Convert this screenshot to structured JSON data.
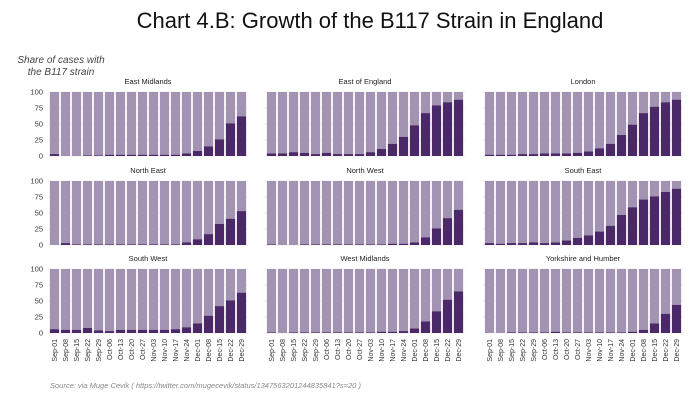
{
  "title": "Chart 4.B: Growth of the B117 Strain in England",
  "y_axis_label_line1": "Share of cases with",
  "y_axis_label_line2": "the B117 strain",
  "source": "Source: via Muge Cevik ( https://twitter.com/mugecevik/status/1347563201244835841?s=20 )",
  "colors": {
    "b117": "#4b2868",
    "other": "#a393b3",
    "grid": "#ececec"
  },
  "chart_data": {
    "type": "bar",
    "stacked": true,
    "title": "Chart 4.B: Growth of the B117 Strain in England",
    "ylabel": "Share of cases with the B117 strain",
    "xlabel": "",
    "ylim": [
      0,
      100
    ],
    "yticks": [
      0,
      25,
      50,
      75,
      100
    ],
    "grid": true,
    "categories": [
      "Sep-01",
      "Sep-08",
      "Sep-15",
      "Sep-22",
      "Sep-29",
      "Oct-06",
      "Oct-13",
      "Oct-20",
      "Oct-27",
      "Nov-03",
      "Nov-10",
      "Nov-17",
      "Nov-24",
      "Dec-01",
      "Dec-08",
      "Dec-15",
      "Dec-22",
      "Dec-29"
    ],
    "panels": [
      {
        "name": "East Midlands",
        "values": [
          3,
          0,
          0,
          1,
          1,
          2,
          2,
          2,
          2,
          2,
          2,
          2,
          4,
          8,
          15,
          26,
          51,
          62
        ]
      },
      {
        "name": "East of England",
        "values": [
          4,
          4,
          6,
          5,
          3,
          5,
          3,
          3,
          3,
          6,
          11,
          19,
          30,
          48,
          67,
          79,
          84,
          88
        ]
      },
      {
        "name": "London",
        "values": [
          2,
          2,
          2,
          3,
          3,
          4,
          4,
          4,
          5,
          7,
          12,
          19,
          33,
          49,
          67,
          77,
          84,
          88
        ]
      },
      {
        "name": "North East",
        "values": [
          0,
          3,
          1,
          1,
          1,
          1,
          1,
          1,
          1,
          1,
          1,
          1,
          4,
          9,
          17,
          33,
          41,
          53
        ]
      },
      {
        "name": "North West",
        "values": [
          1,
          0,
          0,
          1,
          1,
          1,
          1,
          1,
          1,
          1,
          1,
          2,
          2,
          4,
          12,
          26,
          42,
          55
        ]
      },
      {
        "name": "South East",
        "values": [
          3,
          2,
          3,
          3,
          4,
          3,
          4,
          7,
          11,
          15,
          21,
          30,
          47,
          59,
          71,
          76,
          83,
          88
        ]
      },
      {
        "name": "South West",
        "values": [
          6,
          5,
          5,
          8,
          4,
          3,
          5,
          5,
          5,
          5,
          5,
          6,
          9,
          15,
          27,
          42,
          51,
          63
        ]
      },
      {
        "name": "West Midlands",
        "values": [
          1,
          0,
          1,
          1,
          1,
          1,
          1,
          1,
          1,
          1,
          2,
          2,
          3,
          7,
          18,
          34,
          52,
          65
        ]
      },
      {
        "name": "Yorkshire and Humber",
        "values": [
          0,
          0,
          1,
          1,
          1,
          1,
          2,
          1,
          1,
          1,
          1,
          1,
          1,
          2,
          5,
          15,
          30,
          44
        ]
      }
    ]
  }
}
